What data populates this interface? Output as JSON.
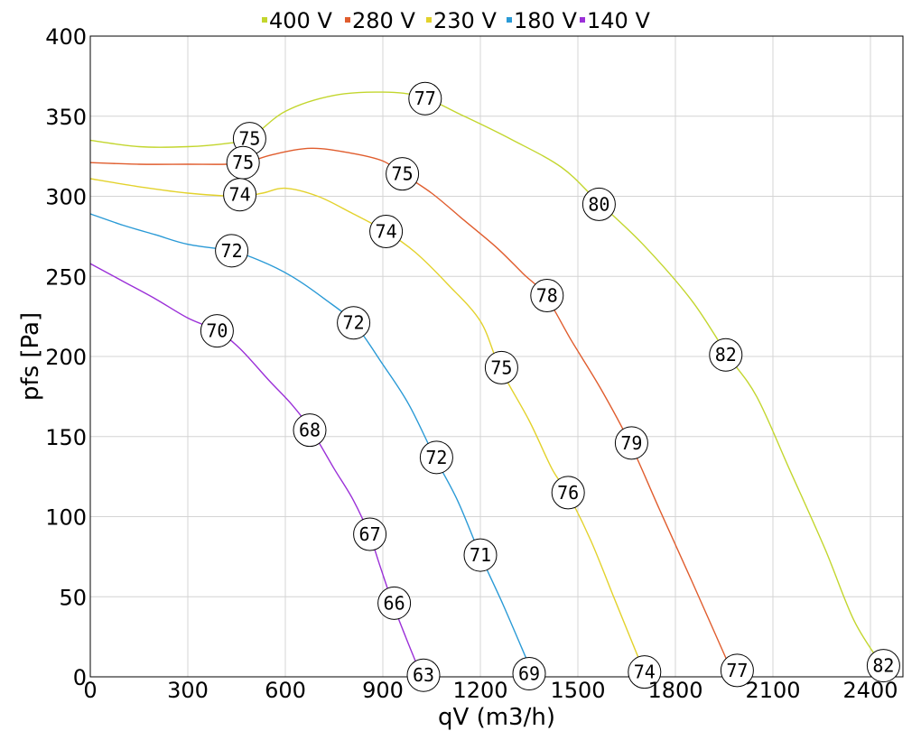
{
  "chart_data": {
    "type": "line",
    "xlabel": "qV (m3/h)",
    "ylabel": "pfs [Pa]",
    "xlim": [
      0,
      2500
    ],
    "ylim": [
      0,
      400
    ],
    "x_ticks": [
      0,
      300,
      600,
      900,
      1200,
      1500,
      1800,
      2100,
      2400
    ],
    "x_tick_labels": [
      "0",
      "300",
      "600",
      "900",
      "1200",
      "1500",
      "1800",
      "2100",
      "2400"
    ],
    "y_ticks": [
      0,
      50,
      100,
      150,
      200,
      250,
      300,
      350,
      400
    ],
    "y_tick_labels": [
      "0",
      "50",
      "100",
      "150",
      "200",
      "250",
      "300",
      "350",
      "400"
    ],
    "grid": true,
    "legend_position": "top-center",
    "series": [
      {
        "name": "400 V",
        "color": "#c3d62e",
        "points": [
          [
            0,
            335
          ],
          [
            150,
            331
          ],
          [
            300,
            331
          ],
          [
            420,
            333
          ],
          [
            490,
            336
          ],
          [
            600,
            353
          ],
          [
            750,
            363
          ],
          [
            900,
            365
          ],
          [
            1020,
            362
          ],
          [
            1150,
            350
          ],
          [
            1300,
            335
          ],
          [
            1450,
            318
          ],
          [
            1560,
            297
          ],
          [
            1700,
            270
          ],
          [
            1850,
            235
          ],
          [
            1960,
            201
          ],
          [
            2050,
            175
          ],
          [
            2150,
            130
          ],
          [
            2260,
            80
          ],
          [
            2350,
            35
          ],
          [
            2440,
            6
          ]
        ],
        "labels": [
          {
            "x": 490,
            "y": 336,
            "text": "75"
          },
          {
            "x": 1030,
            "y": 361,
            "text": "77"
          },
          {
            "x": 1565,
            "y": 295,
            "text": "80"
          },
          {
            "x": 1955,
            "y": 201,
            "text": "82"
          },
          {
            "x": 2440,
            "y": 7,
            "text": "82"
          }
        ]
      },
      {
        "name": "280 V",
        "color": "#e05d2e",
        "points": [
          [
            0,
            321
          ],
          [
            150,
            320
          ],
          [
            300,
            320
          ],
          [
            420,
            320
          ],
          [
            480,
            321
          ],
          [
            560,
            326
          ],
          [
            680,
            330
          ],
          [
            800,
            327
          ],
          [
            900,
            322
          ],
          [
            960,
            314
          ],
          [
            1050,
            302
          ],
          [
            1150,
            285
          ],
          [
            1250,
            268
          ],
          [
            1330,
            252
          ],
          [
            1400,
            238
          ],
          [
            1480,
            210
          ],
          [
            1570,
            180
          ],
          [
            1660,
            146
          ],
          [
            1750,
            105
          ],
          [
            1850,
            60
          ],
          [
            1970,
            5
          ]
        ],
        "labels": [
          {
            "x": 470,
            "y": 321,
            "text": "75"
          },
          {
            "x": 960,
            "y": 314,
            "text": "75"
          },
          {
            "x": 1405,
            "y": 238,
            "text": "78"
          },
          {
            "x": 1665,
            "y": 146,
            "text": "79"
          },
          {
            "x": 1990,
            "y": 4,
            "text": "77"
          }
        ]
      },
      {
        "name": "230 V",
        "color": "#e3d22c",
        "points": [
          [
            0,
            311
          ],
          [
            150,
            306
          ],
          [
            300,
            302
          ],
          [
            460,
            300
          ],
          [
            530,
            302
          ],
          [
            600,
            305
          ],
          [
            700,
            300
          ],
          [
            800,
            290
          ],
          [
            910,
            278
          ],
          [
            1000,
            265
          ],
          [
            1100,
            245
          ],
          [
            1200,
            222
          ],
          [
            1260,
            193
          ],
          [
            1350,
            160
          ],
          [
            1420,
            130
          ],
          [
            1470,
            114
          ],
          [
            1540,
            85
          ],
          [
            1610,
            50
          ],
          [
            1660,
            25
          ],
          [
            1700,
            5
          ]
        ],
        "labels": [
          {
            "x": 460,
            "y": 301,
            "text": "74"
          },
          {
            "x": 910,
            "y": 278,
            "text": "74"
          },
          {
            "x": 1265,
            "y": 193,
            "text": "75"
          },
          {
            "x": 1470,
            "y": 115,
            "text": "76"
          },
          {
            "x": 1705,
            "y": 3,
            "text": "74"
          }
        ]
      },
      {
        "name": "180 V",
        "color": "#2a9ad6",
        "points": [
          [
            0,
            289
          ],
          [
            100,
            282
          ],
          [
            200,
            276
          ],
          [
            300,
            270
          ],
          [
            430,
            266
          ],
          [
            520,
            260
          ],
          [
            620,
            250
          ],
          [
            720,
            236
          ],
          [
            810,
            221
          ],
          [
            900,
            195
          ],
          [
            980,
            170
          ],
          [
            1060,
            137
          ],
          [
            1130,
            110
          ],
          [
            1200,
            76
          ],
          [
            1270,
            45
          ],
          [
            1340,
            12
          ]
        ],
        "labels": [
          {
            "x": 435,
            "y": 266,
            "text": "72"
          },
          {
            "x": 810,
            "y": 221,
            "text": "72"
          },
          {
            "x": 1065,
            "y": 137,
            "text": "72"
          },
          {
            "x": 1200,
            "y": 76,
            "text": "71"
          },
          {
            "x": 1350,
            "y": 2,
            "text": "69"
          }
        ]
      },
      {
        "name": "140 V",
        "color": "#9b30d8",
        "points": [
          [
            0,
            258
          ],
          [
            100,
            247
          ],
          [
            200,
            236
          ],
          [
            300,
            224
          ],
          [
            390,
            216
          ],
          [
            460,
            205
          ],
          [
            550,
            185
          ],
          [
            620,
            170
          ],
          [
            680,
            154
          ],
          [
            750,
            130
          ],
          [
            810,
            110
          ],
          [
            860,
            88
          ],
          [
            890,
            70
          ],
          [
            930,
            46
          ],
          [
            970,
            25
          ],
          [
            1010,
            5
          ]
        ],
        "labels": [
          {
            "x": 390,
            "y": 216,
            "text": "70"
          },
          {
            "x": 675,
            "y": 154,
            "text": "68"
          },
          {
            "x": 860,
            "y": 89,
            "text": "67"
          },
          {
            "x": 935,
            "y": 46,
            "text": "66"
          },
          {
            "x": 1025,
            "y": 1,
            "text": "63"
          }
        ]
      }
    ]
  }
}
